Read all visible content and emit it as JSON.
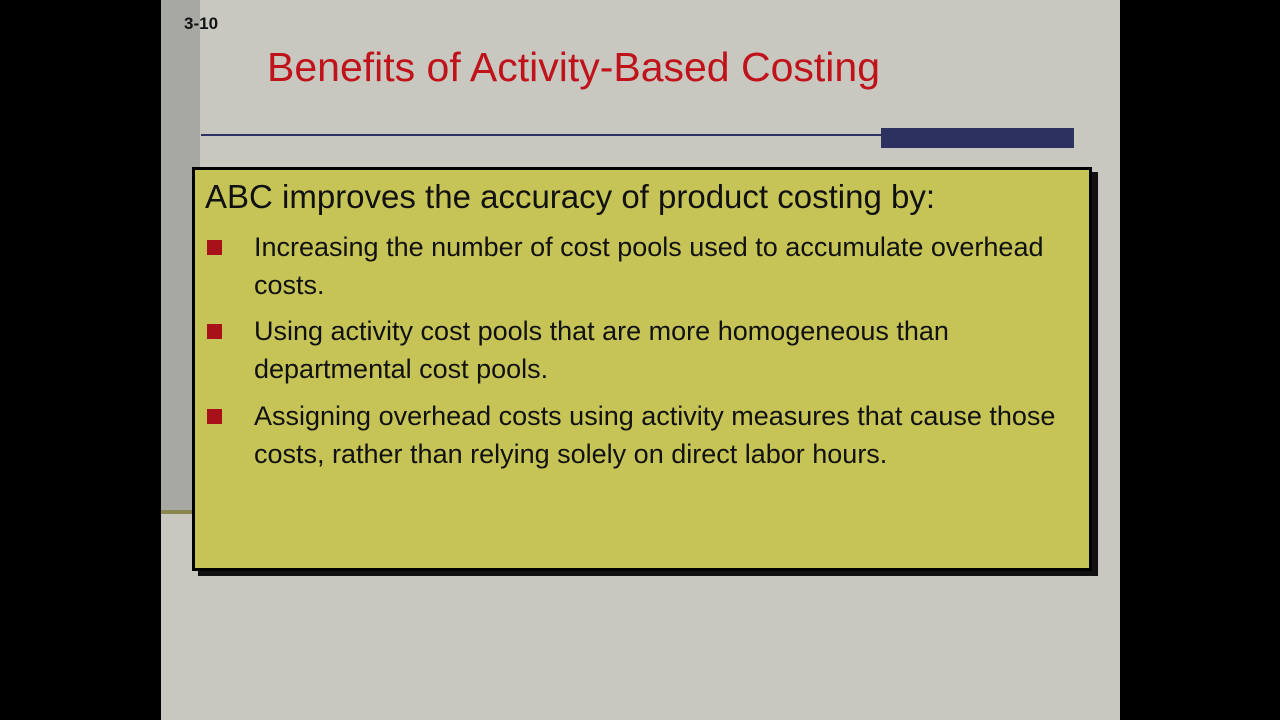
{
  "slide": {
    "number": "3-10",
    "title": "Benefits of Activity-Based Costing",
    "lead": "ABC improves the accuracy of product costing by:",
    "bullets": [
      {
        "icon": "square-bullet-icon",
        "text": "Increasing the number of cost pools used to accumulate overhead costs."
      },
      {
        "icon": "square-bullet-icon",
        "text": "Using activity cost pools that are more homogeneous than departmental cost pools."
      },
      {
        "icon": "square-bullet-icon",
        "text": "Assigning overhead costs using activity measures that cause those costs, rather than relying solely on direct labor hours."
      }
    ],
    "colors": {
      "title": "#c0121a",
      "box": "#c7c457",
      "accent": "#2d3160",
      "bullet": "#a8101a"
    }
  }
}
